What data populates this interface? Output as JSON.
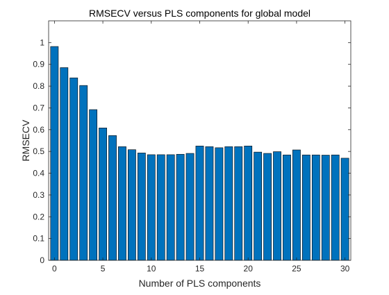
{
  "chart_data": {
    "type": "bar",
    "title": "RMSECV versus PLS components for global model",
    "xlabel": "Number of PLS components",
    "ylabel": "RMSECV",
    "bar_color": "#0072BD",
    "edge_color": "#000000",
    "xlim": [
      -0.6,
      30.6
    ],
    "ylim": [
      0,
      1.1
    ],
    "x": [
      0,
      1,
      2,
      3,
      4,
      5,
      6,
      7,
      8,
      9,
      10,
      11,
      12,
      13,
      14,
      15,
      16,
      17,
      18,
      19,
      20,
      21,
      22,
      23,
      24,
      25,
      26,
      27,
      28,
      29,
      30
    ],
    "values": [
      0.982,
      0.885,
      0.838,
      0.803,
      0.692,
      0.608,
      0.573,
      0.522,
      0.508,
      0.493,
      0.485,
      0.485,
      0.485,
      0.487,
      0.491,
      0.525,
      0.522,
      0.517,
      0.522,
      0.522,
      0.525,
      0.497,
      0.491,
      0.499,
      0.484,
      0.507,
      0.484,
      0.484,
      0.483,
      0.484,
      0.469
    ],
    "xticks": [
      0,
      5,
      10,
      15,
      20,
      25,
      30
    ],
    "xtick_labels": [
      "0",
      "5",
      "10",
      "15",
      "20",
      "25",
      "30"
    ],
    "yticks": [
      0,
      0.1,
      0.2,
      0.3,
      0.4,
      0.5,
      0.6,
      0.7,
      0.8,
      0.9,
      1
    ],
    "ytick_labels": [
      "0",
      "0.1",
      "0.2",
      "0.3",
      "0.4",
      "0.5",
      "0.6",
      "0.7",
      "0.8",
      "0.9",
      "1"
    ],
    "grid": false,
    "legend": "none"
  }
}
